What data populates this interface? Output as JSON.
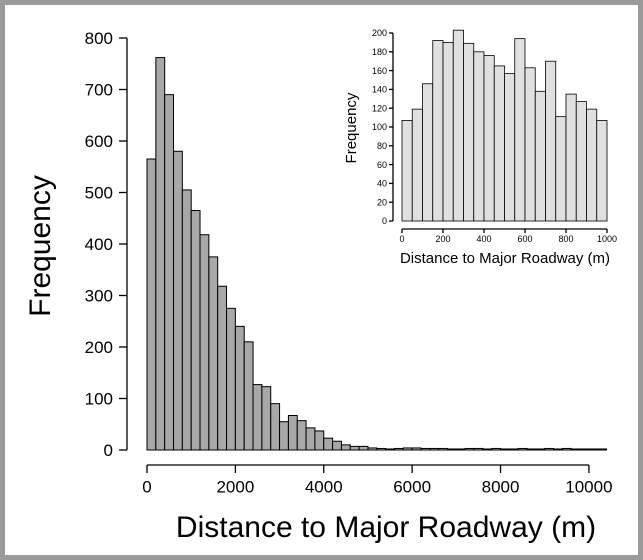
{
  "chart_data": [
    {
      "type": "bar",
      "role": "main",
      "xlabel": "Distance to Major Roadway (m)",
      "ylabel": "Frequency",
      "xlim": [
        0,
        10500
      ],
      "ylim": [
        0,
        800
      ],
      "xticks": [
        0,
        2000,
        4000,
        6000,
        8000,
        10000
      ],
      "yticks": [
        0,
        100,
        200,
        300,
        400,
        500,
        600,
        700,
        800
      ],
      "bin_width": 200,
      "bin_start": 0,
      "values": [
        565,
        762,
        690,
        580,
        505,
        465,
        418,
        375,
        318,
        275,
        240,
        210,
        127,
        123,
        90,
        55,
        67,
        57,
        43,
        37,
        23,
        17,
        10,
        7,
        7,
        4,
        3,
        2,
        3,
        4,
        4,
        3,
        3,
        3,
        2,
        2,
        3,
        3,
        2,
        3,
        2,
        2,
        3,
        2,
        2,
        3,
        2,
        3,
        2,
        2,
        2,
        2
      ]
    },
    {
      "type": "bar",
      "role": "inset",
      "xlabel": "Distance to Major Roadway (m)",
      "ylabel": "Frequency",
      "xlim": [
        0,
        1000
      ],
      "ylim": [
        0,
        200
      ],
      "xticks": [
        0,
        200,
        400,
        600,
        800,
        1000
      ],
      "yticks": [
        0,
        20,
        40,
        60,
        80,
        100,
        120,
        140,
        160,
        180,
        200
      ],
      "bin_width": 50,
      "bin_start": 0,
      "values": [
        107,
        119,
        146,
        192,
        190,
        203,
        189,
        180,
        176,
        165,
        157,
        194,
        163,
        138,
        170,
        111,
        135,
        127,
        119,
        107
      ]
    }
  ]
}
